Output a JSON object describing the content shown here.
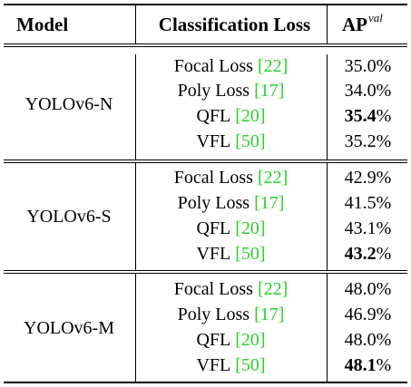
{
  "header": {
    "model": "Model",
    "loss": "Classification Loss",
    "ap": "AP",
    "ap_superscript": "val"
  },
  "groups": [
    {
      "model": "YOLOv6-N",
      "rows": [
        {
          "loss": "Focal Loss",
          "ref": "[22]",
          "ap": "35.0",
          "ap_bold": false
        },
        {
          "loss": "Poly Loss",
          "ref": "[17]",
          "ap": "34.0",
          "ap_bold": false
        },
        {
          "loss": "QFL",
          "ref": "[20]",
          "ap": "35.4",
          "ap_bold": true
        },
        {
          "loss": "VFL",
          "ref": "[50]",
          "ap": "35.2",
          "ap_bold": false
        }
      ]
    },
    {
      "model": "YOLOv6-S",
      "rows": [
        {
          "loss": "Focal Loss",
          "ref": "[22]",
          "ap": "42.9",
          "ap_bold": false
        },
        {
          "loss": "Poly Loss",
          "ref": "[17]",
          "ap": "41.5",
          "ap_bold": false
        },
        {
          "loss": "QFL",
          "ref": "[20]",
          "ap": "43.1",
          "ap_bold": false
        },
        {
          "loss": "VFL",
          "ref": "[50]",
          "ap": "43.2",
          "ap_bold": true
        }
      ]
    },
    {
      "model": "YOLOv6-M",
      "rows": [
        {
          "loss": "Focal Loss",
          "ref": "[22]",
          "ap": "48.0",
          "ap_bold": false
        },
        {
          "loss": "Poly Loss",
          "ref": "[17]",
          "ap": "46.9",
          "ap_bold": false
        },
        {
          "loss": "QFL",
          "ref": "[20]",
          "ap": "48.0",
          "ap_bold": false
        },
        {
          "loss": "VFL",
          "ref": "[50]",
          "ap": "48.1",
          "ap_bold": true
        }
      ]
    }
  ],
  "ap_unit": "%",
  "colors": {
    "citation": "#2bd12b",
    "text": "#000000"
  }
}
